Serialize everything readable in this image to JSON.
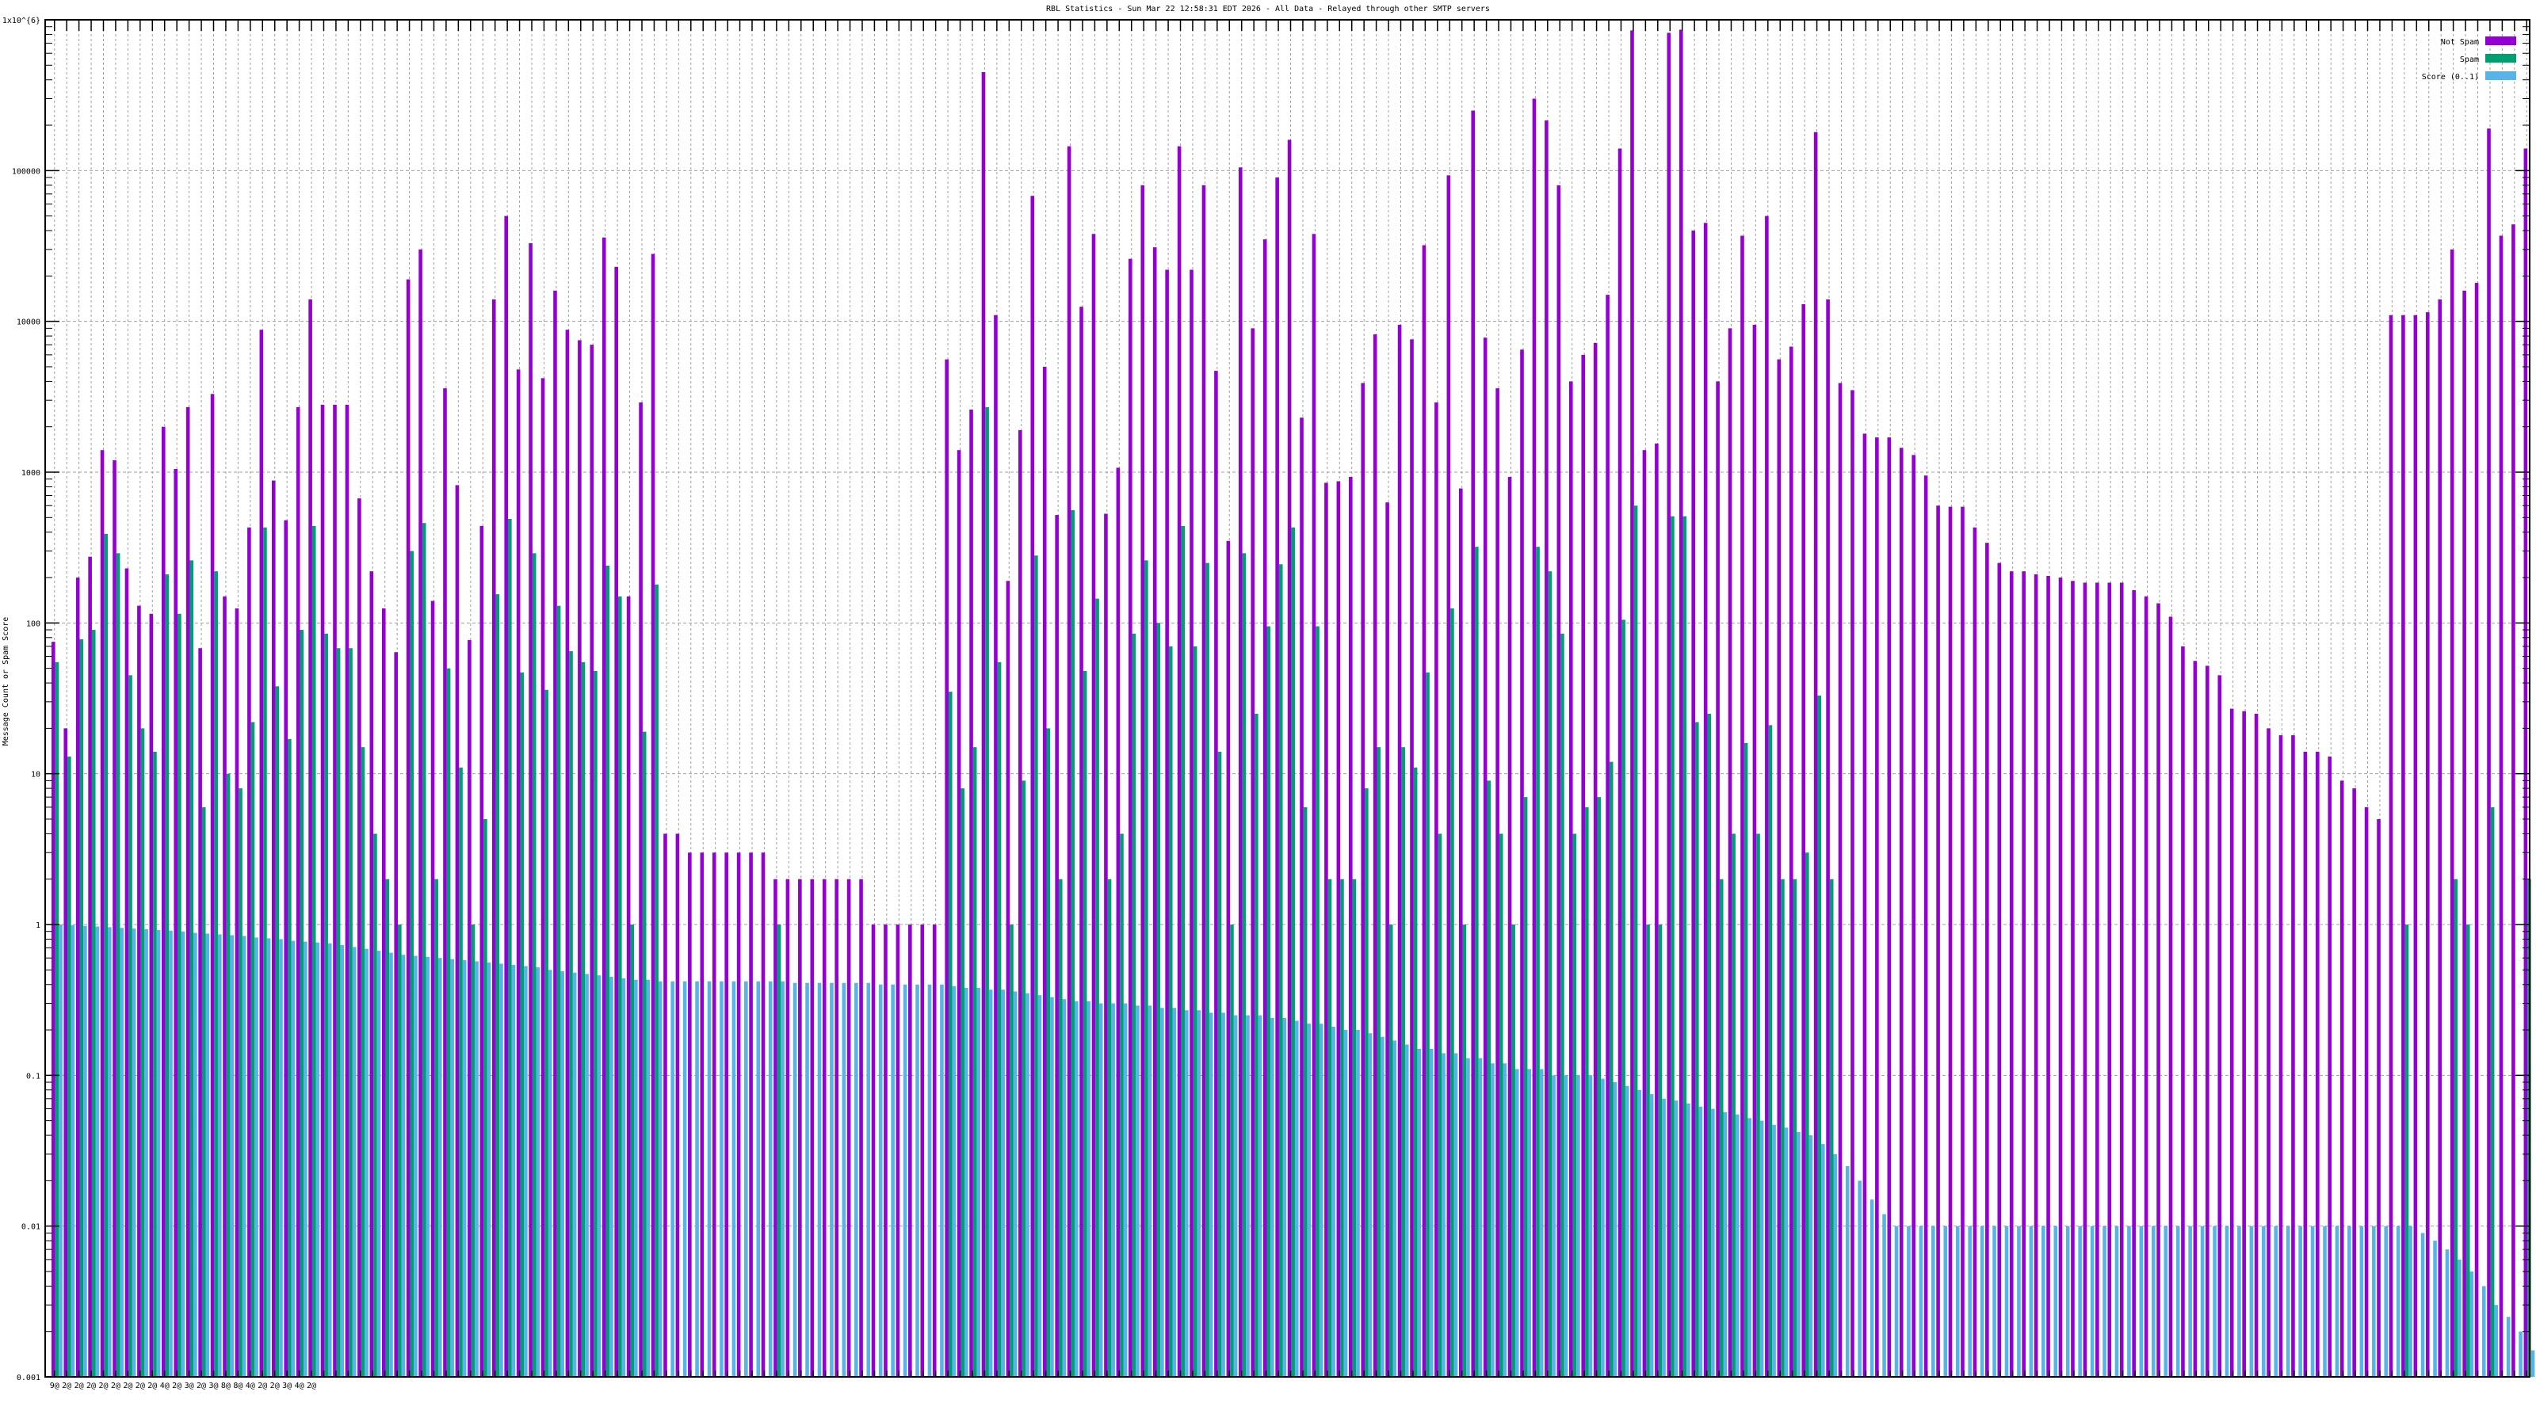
{
  "chart_data": {
    "type": "bar",
    "title": "RBL Statistics - Sun Mar 22 12:58:31 EDT 2026 - All Data - Relayed through other SMTP servers",
    "ylabel": "Message Count or Spam Score",
    "xlabel": "",
    "yscale": "log",
    "ylim": [
      0.001,
      1000000
    ],
    "y_tick_labels": [
      "0.001",
      "0.01",
      "0.1",
      "1",
      "10",
      "100",
      "1000",
      "10000",
      "100000",
      "1x10^{6}"
    ],
    "y_tick_values": [
      0.001,
      0.01,
      0.1,
      1,
      10,
      100,
      1000,
      10000,
      100000,
      1000000
    ],
    "grid": true,
    "legend_position": "top-right",
    "x_tick_labels": [
      "9@",
      "2@",
      "2@",
      "2@",
      "2@",
      "2@",
      "2@",
      "2@",
      "2@",
      "4@",
      "2@",
      "3@",
      "2@",
      "3@",
      "8@",
      "8@",
      "4@",
      "2@",
      "2@",
      "3@",
      "4@",
      "2@"
    ],
    "series": [
      {
        "name": "Not Spam",
        "color": "#9400d3",
        "values": [
          75,
          20,
          200,
          275,
          1400,
          1200,
          230,
          130,
          115,
          2000,
          1050,
          2700,
          68,
          3300,
          150,
          125,
          430,
          8800,
          880,
          480,
          2700,
          14000,
          2800,
          2800,
          2800,
          670,
          220,
          125,
          64,
          19000,
          30000,
          140,
          3600,
          820,
          77,
          440,
          14000,
          50000,
          4800,
          33000,
          4200,
          16000,
          8800,
          7500,
          7000,
          36000,
          23000,
          150,
          2900,
          28000,
          4,
          4,
          3,
          3,
          3,
          3,
          3,
          3,
          3,
          2,
          2,
          2,
          2,
          2,
          2,
          2,
          2,
          1,
          1,
          1,
          1,
          1,
          1,
          5600,
          1400,
          2600,
          450000,
          11000,
          190,
          1900,
          68000,
          5000,
          520,
          145000,
          12500,
          38000,
          530,
          1070,
          26000,
          80000,
          31000,
          22000,
          145000,
          22000,
          80000,
          4700,
          350,
          105000,
          9000,
          35000,
          90000,
          160000,
          2300,
          38000,
          850,
          870,
          930,
          3900,
          8200,
          630,
          9500,
          7600,
          32000,
          2900,
          93000,
          780,
          250000,
          7800,
          3600,
          930,
          6500,
          300000,
          215000,
          80000,
          4000,
          6000,
          7200,
          15000,
          140000,
          850000,
          1400,
          1550,
          820000,
          860000,
          40000,
          45000,
          4000,
          9000,
          37000,
          9500,
          50000,
          5600,
          6800,
          13000,
          180000,
          14000,
          3900,
          3500,
          1800,
          1700,
          1700,
          1450,
          1300,
          950,
          600,
          590,
          590,
          430,
          340,
          250,
          220,
          220,
          210,
          205,
          200,
          190,
          185,
          185,
          185,
          185,
          165,
          150,
          135,
          110,
          70,
          56,
          52,
          45,
          27,
          26,
          25,
          20,
          18,
          18,
          14,
          14,
          13,
          9,
          8,
          6,
          5,
          11000,
          11000,
          11000,
          11500,
          14000,
          30000,
          16000,
          18000,
          190000,
          37000,
          44000,
          140000
        ]
      },
      {
        "name": "Spam",
        "color": "#009e73",
        "values": [
          55,
          13,
          78,
          90,
          390,
          290,
          45,
          20,
          14,
          210,
          115,
          260,
          6,
          220,
          10,
          8,
          22,
          430,
          38,
          17,
          90,
          440,
          85,
          68,
          68,
          15,
          4,
          2,
          1,
          300,
          460,
          2,
          50,
          11,
          1,
          5,
          155,
          490,
          47,
          290,
          36,
          130,
          65,
          55,
          48,
          240,
          150,
          1,
          19,
          180,
          0,
          0,
          0,
          0,
          0,
          0,
          0,
          0,
          0,
          1,
          0,
          0,
          0,
          0,
          0,
          0,
          0,
          0,
          0,
          0,
          0,
          0,
          0,
          35,
          8,
          15,
          2700,
          55,
          1,
          9,
          280,
          20,
          2,
          560,
          48,
          145,
          2,
          4,
          85,
          260,
          100,
          70,
          440,
          70,
          250,
          14,
          1,
          290,
          25,
          95,
          245,
          430,
          6,
          95,
          2,
          2,
          2,
          8,
          15,
          1,
          15,
          11,
          47,
          4,
          125,
          1,
          320,
          9,
          4,
          1,
          7,
          320,
          220,
          85,
          4,
          6,
          7,
          12,
          105,
          600,
          1,
          1,
          510,
          510,
          22,
          25,
          2,
          4,
          16,
          4,
          21,
          2,
          2,
          3,
          33,
          2,
          0,
          0,
          0,
          0,
          0,
          0,
          0,
          0,
          0,
          0,
          0,
          0,
          0,
          0,
          0,
          0,
          0,
          0,
          0,
          0,
          0,
          0,
          0,
          0,
          0,
          0,
          0,
          0,
          0,
          0,
          0,
          0,
          0,
          0,
          0,
          0,
          0,
          0,
          0,
          0,
          0,
          0,
          0,
          0,
          0,
          0,
          1,
          0,
          0,
          0,
          2,
          1,
          0,
          6,
          0,
          0,
          2
        ]
      },
      {
        "name": "Score (0..1)",
        "color": "#56b4e9",
        "values": [
          1,
          0.99,
          0.98,
          0.97,
          0.96,
          0.95,
          0.94,
          0.93,
          0.92,
          0.91,
          0.9,
          0.88,
          0.87,
          0.86,
          0.85,
          0.84,
          0.82,
          0.81,
          0.8,
          0.78,
          0.77,
          0.76,
          0.75,
          0.73,
          0.71,
          0.69,
          0.67,
          0.65,
          0.63,
          0.62,
          0.61,
          0.6,
          0.59,
          0.58,
          0.57,
          0.56,
          0.55,
          0.54,
          0.53,
          0.52,
          0.5,
          0.49,
          0.48,
          0.47,
          0.46,
          0.45,
          0.44,
          0.43,
          0.43,
          0.42,
          0.42,
          0.42,
          0.42,
          0.42,
          0.42,
          0.42,
          0.42,
          0.42,
          0.42,
          0.42,
          0.41,
          0.41,
          0.41,
          0.41,
          0.41,
          0.41,
          0.41,
          0.4,
          0.4,
          0.4,
          0.4,
          0.4,
          0.4,
          0.39,
          0.38,
          0.38,
          0.37,
          0.37,
          0.36,
          0.35,
          0.34,
          0.33,
          0.32,
          0.31,
          0.31,
          0.3,
          0.3,
          0.3,
          0.29,
          0.29,
          0.28,
          0.28,
          0.27,
          0.27,
          0.26,
          0.26,
          0.25,
          0.25,
          0.25,
          0.24,
          0.24,
          0.23,
          0.22,
          0.22,
          0.21,
          0.2,
          0.2,
          0.19,
          0.18,
          0.17,
          0.16,
          0.15,
          0.15,
          0.14,
          0.14,
          0.13,
          0.13,
          0.12,
          0.12,
          0.11,
          0.11,
          0.11,
          0.1,
          0.1,
          0.1,
          0.1,
          0.095,
          0.09,
          0.085,
          0.08,
          0.075,
          0.07,
          0.068,
          0.065,
          0.062,
          0.06,
          0.057,
          0.055,
          0.052,
          0.05,
          0.047,
          0.045,
          0.042,
          0.04,
          0.035,
          0.03,
          0.025,
          0.02,
          0.015,
          0.012,
          0.01,
          0.01,
          0.01,
          0.01,
          0.01,
          0.01,
          0.01,
          0.01,
          0.01,
          0.01,
          0.01,
          0.01,
          0.01,
          0.01,
          0.01,
          0.01,
          0.01,
          0.01,
          0.01,
          0.01,
          0.01,
          0.01,
          0.01,
          0.01,
          0.01,
          0.01,
          0.01,
          0.01,
          0.01,
          0.01,
          0.01,
          0.01,
          0.01,
          0.01,
          0.01,
          0.01,
          0.01,
          0.01,
          0.01,
          0.01,
          0.01,
          0.01,
          0.01,
          0.009,
          0.008,
          0.007,
          0.006,
          0.005,
          0.004,
          0.003,
          0.0025,
          0.002,
          0.0015
        ]
      }
    ]
  }
}
